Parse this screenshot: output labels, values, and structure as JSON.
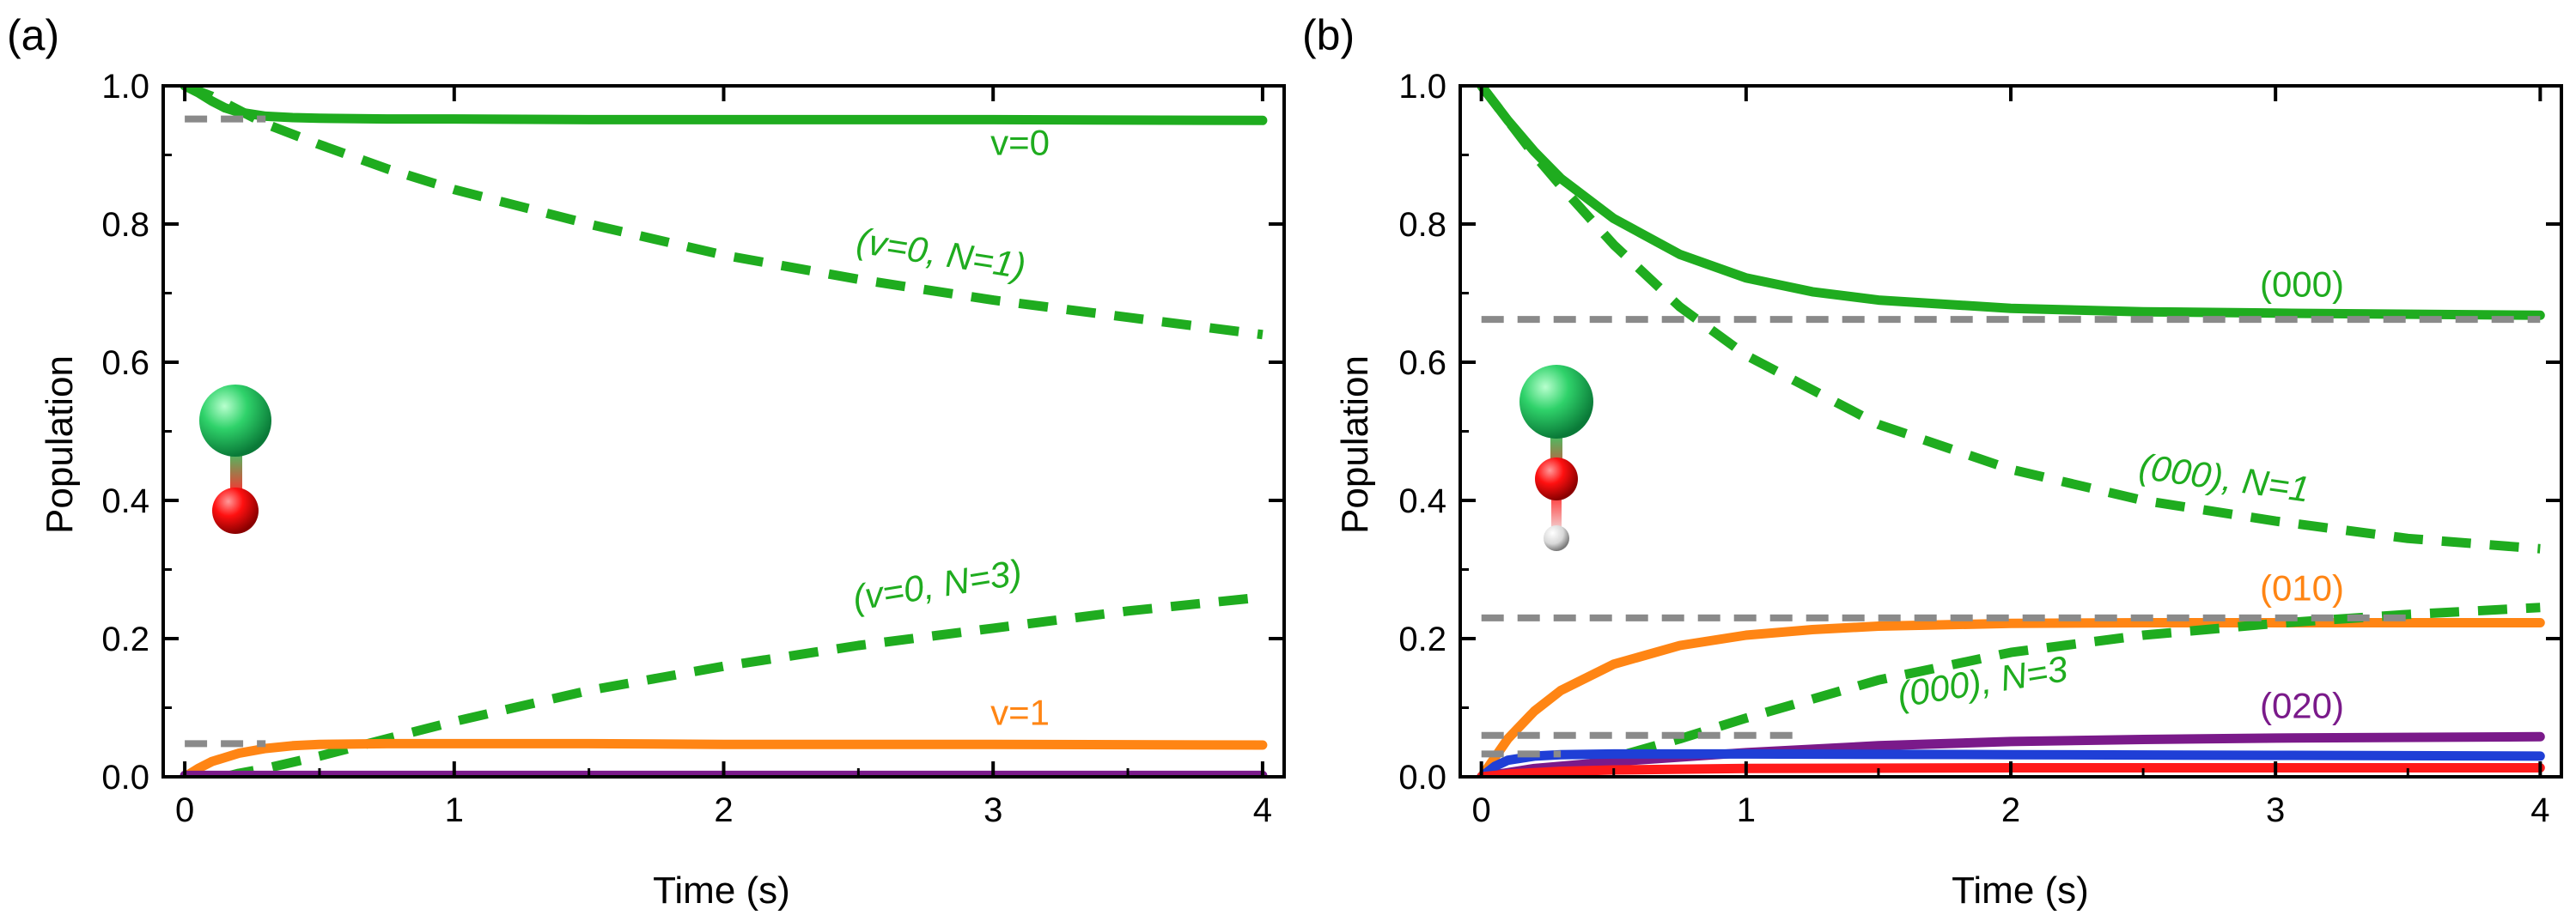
{
  "chart_data": [
    {
      "type": "line",
      "panel_label": "(a)",
      "xlabel": "Time (s)",
      "ylabel": "Population",
      "xlim": [
        -0.08,
        4.08
      ],
      "ylim": [
        0,
        1.0
      ],
      "xticks": [
        0,
        1,
        2,
        3,
        4
      ],
      "xtick_labels": [
        "0",
        "1",
        "2",
        "3",
        "4"
      ],
      "yticks": [
        0.0,
        0.2,
        0.4,
        0.6,
        0.8,
        1.0
      ],
      "ytick_labels": [
        "0.0",
        "0.2",
        "0.4",
        "0.6",
        "0.8",
        "1.0"
      ],
      "grid": false,
      "colors": {
        "green": "#1fac1f",
        "orange": "#ff8514",
        "purple": "#7a1a8a",
        "gray": "#8a8a8a"
      },
      "series": [
        {
          "style": "solid",
          "color": "#1fac1f",
          "x": [
            0,
            0.05,
            0.1,
            0.15,
            0.2,
            0.3,
            0.4,
            0.5,
            0.75,
            1,
            1.5,
            2,
            3,
            4
          ],
          "y": [
            1.0,
            0.99,
            0.978,
            0.968,
            0.962,
            0.956,
            0.954,
            0.953,
            0.952,
            0.952,
            0.951,
            0.951,
            0.951,
            0.95
          ]
        },
        {
          "style": "dashed",
          "color": "#1fac1f",
          "x": [
            0,
            0.1,
            0.2,
            0.3,
            0.5,
            0.75,
            1,
            1.5,
            2,
            2.5,
            3,
            3.5,
            4
          ],
          "y": [
            1.0,
            0.985,
            0.965,
            0.945,
            0.915,
            0.88,
            0.85,
            0.8,
            0.755,
            0.72,
            0.69,
            0.665,
            0.64
          ]
        },
        {
          "style": "dashed",
          "color": "#1fac1f",
          "x": [
            0.15,
            0.2,
            0.3,
            0.5,
            0.75,
            1,
            1.5,
            2,
            2.5,
            3,
            3.5,
            4
          ],
          "y": [
            0.0,
            0.005,
            0.012,
            0.03,
            0.055,
            0.08,
            0.125,
            0.16,
            0.19,
            0.215,
            0.24,
            0.26
          ]
        },
        {
          "style": "solid",
          "color": "#ff8514",
          "x": [
            0,
            0.05,
            0.1,
            0.2,
            0.3,
            0.4,
            0.5,
            0.75,
            1,
            1.5,
            2,
            3,
            4
          ],
          "y": [
            0.0,
            0.012,
            0.022,
            0.034,
            0.041,
            0.045,
            0.047,
            0.048,
            0.048,
            0.048,
            0.047,
            0.047,
            0.046
          ]
        },
        {
          "style": "solid",
          "color": "#7a1a8a",
          "x": [
            0,
            1,
            2,
            3,
            4
          ],
          "y": [
            0.002,
            0.002,
            0.002,
            0.002,
            0.002
          ]
        },
        {
          "style": "dashed-gray",
          "color": "#8a8a8a",
          "x": [
            0,
            0.3
          ],
          "y": [
            0.952,
            0.952
          ]
        },
        {
          "style": "dashed-gray",
          "color": "#8a8a8a",
          "x": [
            0,
            0.3
          ],
          "y": [
            0.048,
            0.048
          ]
        }
      ],
      "annotations": [
        {
          "text": "v=0",
          "italic": false,
          "color": "#1fac1f",
          "x": 3.1,
          "y": 0.9,
          "rotate": 0
        },
        {
          "text": "(v=0, N=1)",
          "italic": true,
          "color": "#1fac1f",
          "x": 2.8,
          "y": 0.74,
          "rotate": 9
        },
        {
          "text": "(v=0, N=3)",
          "italic": true,
          "color": "#1fac1f",
          "x": 2.8,
          "y": 0.26,
          "rotate": -9
        },
        {
          "text": "v=1",
          "italic": false,
          "color": "#ff8514",
          "x": 3.1,
          "y": 0.075,
          "rotate": 0
        }
      ]
    },
    {
      "type": "line",
      "panel_label": "(b)",
      "xlabel": "Time (s)",
      "ylabel": "Population",
      "xlim": [
        -0.08,
        4.08
      ],
      "ylim": [
        0,
        1.0
      ],
      "xticks": [
        0,
        1,
        2,
        3,
        4
      ],
      "xtick_labels": [
        "0",
        "1",
        "2",
        "3",
        "4"
      ],
      "yticks": [
        0.0,
        0.2,
        0.4,
        0.6,
        0.8,
        1.0
      ],
      "ytick_labels": [
        "0.0",
        "0.2",
        "0.4",
        "0.6",
        "0.8",
        "1.0"
      ],
      "grid": false,
      "colors": {
        "green": "#1fac1f",
        "orange": "#ff8514",
        "purple": "#7a1a8a",
        "blue": "#1f3fd6",
        "red": "#ff1a1a",
        "gray": "#8a8a8a"
      },
      "series": [
        {
          "style": "solid",
          "color": "#1fac1f",
          "x": [
            0,
            0.1,
            0.2,
            0.3,
            0.5,
            0.75,
            1,
            1.25,
            1.5,
            2,
            2.5,
            3,
            4
          ],
          "y": [
            1.0,
            0.95,
            0.905,
            0.866,
            0.808,
            0.756,
            0.722,
            0.702,
            0.69,
            0.678,
            0.673,
            0.671,
            0.668
          ]
        },
        {
          "style": "dashed",
          "color": "#1fac1f",
          "x": [
            0,
            0.1,
            0.2,
            0.3,
            0.5,
            0.75,
            1,
            1.5,
            2,
            2.5,
            3,
            3.5,
            4
          ],
          "y": [
            1.0,
            0.95,
            0.9,
            0.855,
            0.77,
            0.68,
            0.61,
            0.51,
            0.445,
            0.4,
            0.37,
            0.345,
            0.33
          ]
        },
        {
          "style": "solid",
          "color": "#ff8514",
          "x": [
            0,
            0.1,
            0.2,
            0.3,
            0.5,
            0.75,
            1,
            1.25,
            1.5,
            2,
            2.5,
            3,
            4
          ],
          "y": [
            0.0,
            0.055,
            0.095,
            0.125,
            0.163,
            0.19,
            0.205,
            0.213,
            0.218,
            0.222,
            0.223,
            0.223,
            0.223
          ]
        },
        {
          "style": "dashed",
          "color": "#1fac1f",
          "x": [
            0.2,
            0.3,
            0.5,
            0.75,
            1,
            1.5,
            2,
            2.5,
            3,
            3.5,
            4
          ],
          "y": [
            0.0,
            0.008,
            0.028,
            0.055,
            0.085,
            0.14,
            0.18,
            0.205,
            0.222,
            0.235,
            0.245
          ]
        },
        {
          "style": "solid",
          "color": "#7a1a8a",
          "x": [
            0,
            0.2,
            0.5,
            1,
            1.5,
            2,
            2.5,
            3,
            4
          ],
          "y": [
            0.0,
            0.012,
            0.022,
            0.035,
            0.045,
            0.051,
            0.054,
            0.056,
            0.058
          ]
        },
        {
          "style": "solid",
          "color": "#1f3fd6",
          "x": [
            0,
            0.05,
            0.1,
            0.2,
            0.3,
            0.5,
            1,
            2,
            3,
            4
          ],
          "y": [
            0.0,
            0.015,
            0.024,
            0.03,
            0.032,
            0.033,
            0.033,
            0.032,
            0.031,
            0.03
          ]
        },
        {
          "style": "solid",
          "color": "#ff1a1a",
          "x": [
            0,
            0.1,
            0.3,
            0.5,
            1,
            2,
            3,
            4
          ],
          "y": [
            0.0,
            0.004,
            0.008,
            0.01,
            0.012,
            0.013,
            0.013,
            0.013
          ]
        },
        {
          "style": "dashed-gray",
          "color": "#8a8a8a",
          "x": [
            0,
            4
          ],
          "y": [
            0.662,
            0.662
          ]
        },
        {
          "style": "dashed-gray",
          "color": "#8a8a8a",
          "x": [
            0,
            3.5
          ],
          "y": [
            0.23,
            0.23
          ]
        },
        {
          "style": "dashed-gray",
          "color": "#8a8a8a",
          "x": [
            0,
            1.2
          ],
          "y": [
            0.06,
            0.06
          ]
        },
        {
          "style": "dashed-gray",
          "color": "#8a8a8a",
          "x": [
            0,
            0.3
          ],
          "y": [
            0.033,
            0.033
          ]
        }
      ],
      "annotations": [
        {
          "text": "(000)",
          "italic": false,
          "color": "#1fac1f",
          "x": 3.1,
          "y": 0.695,
          "rotate": 0
        },
        {
          "text": "(000), N=1",
          "italic": true,
          "color": "#1fac1f",
          "x": 2.8,
          "y": 0.415,
          "rotate": 8
        },
        {
          "text": "(010)",
          "italic": false,
          "color": "#ff8514",
          "x": 3.1,
          "y": 0.255,
          "rotate": 0
        },
        {
          "text": "(000), N=3",
          "italic": true,
          "color": "#1fac1f",
          "x": 1.9,
          "y": 0.12,
          "rotate": -9
        },
        {
          "text": "(020)",
          "italic": false,
          "color": "#7a1a8a",
          "x": 3.1,
          "y": 0.085,
          "rotate": 0
        }
      ]
    }
  ]
}
